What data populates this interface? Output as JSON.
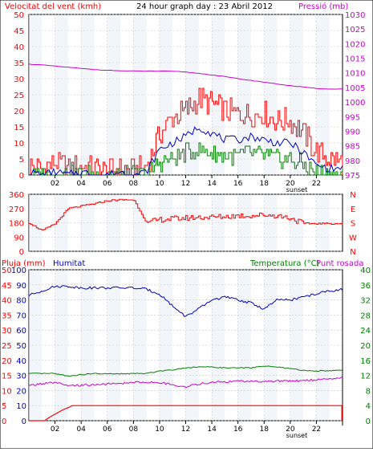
{
  "header": {
    "title": "24 hour graph day : 23 Abril 2012",
    "wind_label": "Velocitat del vent (kmh)",
    "pressure_label": "Pressió (mb)",
    "rain_label": "Pluja (mm)",
    "humidity_label": "Humitat",
    "temp_label": "Temperatura (°C)",
    "dew_label": "Punt rosada"
  },
  "x_ticks": [
    "02",
    "04",
    "06",
    "08",
    "10",
    "12",
    "14",
    "16",
    "18",
    "20",
    "22"
  ],
  "sunset_label": "sunset",
  "colors": {
    "wind": "#ff0000",
    "gust": "#0000c8",
    "calm": "#008000",
    "pressure": "#cc00cc",
    "humidity": "#0000c0",
    "temp": "#008000",
    "dew": "#cc00cc",
    "rain": "#ff0000",
    "grid": "#c8c8c8",
    "frame": "#000000",
    "band": "#e8eef8"
  },
  "chart_data": [
    {
      "type": "line",
      "title": "24 hour graph day : 23 Abril 2012",
      "ylabel": "Velocitat del vent (kmh)",
      "y2label": "Pressió (mb)",
      "ylim": [
        0,
        50
      ],
      "y2lim": [
        975,
        1030
      ],
      "yticks": [
        "0",
        "5",
        "10",
        "15",
        "20",
        "25",
        "30",
        "35",
        "40",
        "45",
        "50"
      ],
      "y2ticks": [
        "975",
        "980",
        "985",
        "990",
        "995",
        "1000",
        "1005",
        "1010",
        "1015",
        "1020",
        "1025",
        "1030"
      ],
      "x": [
        0,
        1,
        2,
        3,
        4,
        5,
        6,
        7,
        8,
        9,
        10,
        11,
        12,
        13,
        14,
        15,
        16,
        17,
        18,
        19,
        20,
        21,
        22,
        23,
        24
      ],
      "series": [
        {
          "name": "Velocitat del vent (kmh)",
          "axis": "left",
          "values": [
            3,
            2,
            4,
            2,
            3,
            2,
            1,
            2,
            1,
            3,
            13,
            18,
            20,
            24,
            22,
            20,
            19,
            19,
            19,
            17,
            17,
            13,
            7,
            5,
            4
          ]
        },
        {
          "name": "gust",
          "axis": "left",
          "values": [
            1,
            0,
            1,
            0,
            1,
            0,
            0,
            1,
            0,
            1,
            8,
            10,
            12,
            15,
            13,
            11,
            11,
            12,
            11,
            10,
            10,
            7,
            3,
            2,
            2
          ]
        },
        {
          "name": "wind-low",
          "axis": "left",
          "values": [
            0,
            0,
            0,
            0,
            0,
            0,
            0,
            0,
            0,
            0,
            4,
            5,
            7,
            8,
            7,
            6,
            6,
            7,
            6,
            5,
            5,
            3,
            1,
            0,
            0
          ]
        },
        {
          "name": "Pressió (mb)",
          "axis": "right",
          "values": [
            1013,
            1012.7,
            1012.3,
            1011.9,
            1011.5,
            1011.1,
            1010.9,
            1010.7,
            1010.6,
            1010.6,
            1010.6,
            1010.5,
            1010.3,
            1009.8,
            1009.3,
            1008.7,
            1008,
            1007.4,
            1006.8,
            1006.2,
            1005.6,
            1005.1,
            1004.7,
            1004.4,
            1004.5
          ]
        }
      ],
      "sunset_hour": 20.5
    },
    {
      "type": "line",
      "ylabel": "direction",
      "ylim": [
        0,
        360
      ],
      "yticks": [
        "0",
        "90",
        "180",
        "270",
        "360"
      ],
      "right_labels": [
        "N",
        "W",
        "S",
        "E",
        "N"
      ],
      "x": [
        0,
        1,
        2,
        3,
        4,
        5,
        6,
        7,
        8,
        9,
        10,
        11,
        12,
        13,
        14,
        15,
        16,
        17,
        18,
        19,
        20,
        21,
        22,
        23,
        24
      ],
      "series": [
        {
          "name": "direction",
          "values": [
            180,
            130,
            175,
            270,
            285,
            300,
            320,
            325,
            325,
            180,
            200,
            205,
            210,
            215,
            215,
            220,
            225,
            225,
            230,
            225,
            210,
            175,
            175,
            175,
            175
          ]
        }
      ]
    },
    {
      "type": "line",
      "ylabel": "Pluja (mm)",
      "y2label": "Temperatura (°C)",
      "ylim": [
        0,
        50
      ],
      "y2lim": [
        0,
        40
      ],
      "yticks_rain": [
        "0",
        "5",
        "10",
        "15",
        "20",
        "25",
        "30",
        "35",
        "40",
        "45",
        "50"
      ],
      "yticks_hum": [
        "0",
        "10",
        "20",
        "30",
        "40",
        "50",
        "60",
        "70",
        "80",
        "90",
        "100"
      ],
      "y2ticks": [
        "0",
        "4",
        "8",
        "12",
        "16",
        "20",
        "24",
        "28",
        "32",
        "36",
        "40"
      ],
      "x": [
        0,
        1,
        2,
        3,
        4,
        5,
        6,
        7,
        8,
        9,
        10,
        11,
        12,
        13,
        14,
        15,
        16,
        17,
        18,
        19,
        20,
        21,
        22,
        23,
        24
      ],
      "series": [
        {
          "name": "Humitat",
          "axis": "humidity",
          "values": [
            83,
            86,
            89,
            89,
            88,
            88,
            88,
            88,
            88,
            87,
            84,
            76,
            69,
            74,
            80,
            82,
            80,
            78,
            74,
            80,
            80,
            82,
            84,
            86,
            87
          ]
        },
        {
          "name": "Temperatura (°C)",
          "axis": "right",
          "values": [
            12.5,
            12.5,
            12.5,
            11.8,
            12.2,
            12.5,
            12.4,
            12.4,
            12.5,
            12.5,
            13.2,
            13.5,
            14,
            14.3,
            14.2,
            14,
            14,
            14,
            14.5,
            14.2,
            13.8,
            13.3,
            13.2,
            13.3,
            13.3
          ]
        },
        {
          "name": "Punt rosada",
          "axis": "right",
          "values": [
            9.3,
            9.8,
            10.1,
            9.2,
            9.4,
            9.5,
            9.7,
            9.8,
            10.2,
            10.2,
            10.1,
            9.5,
            9,
            9.7,
            10.2,
            10.3,
            10.5,
            10.4,
            10.3,
            10.6,
            10.4,
            10.7,
            10.8,
            11.2,
            11.5
          ]
        },
        {
          "name": "Pluja (mm)",
          "axis": "left",
          "values": [
            0,
            0,
            0.5,
            4.5,
            5,
            5,
            5,
            5,
            5,
            5,
            5,
            5,
            5,
            5,
            5,
            5,
            5,
            5,
            5,
            5,
            5,
            5,
            5,
            5,
            0
          ]
        }
      ],
      "sunset_hour": 20.5
    }
  ]
}
